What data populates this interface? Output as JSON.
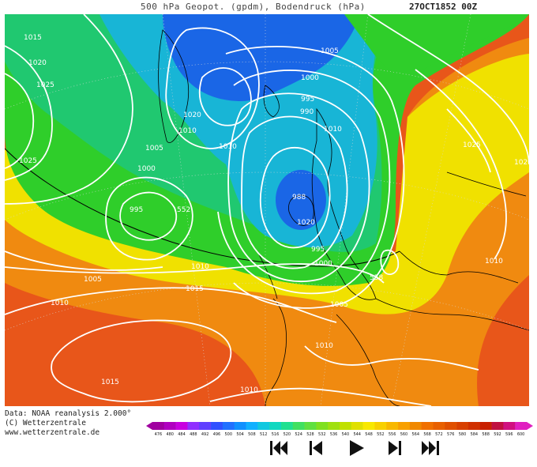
{
  "header": {
    "title": "500 hPa Geopot. (gpdm), Bodendruck (hPa)",
    "datestamp": "27OCT1852 00Z"
  },
  "map": {
    "isobar_labels": [
      "1015",
      "1020",
      "1025",
      "1025",
      "1020",
      "1010",
      "1005",
      "1000",
      "995",
      "990",
      "1010",
      "1005",
      "1000",
      "995",
      "1010",
      "1020",
      "1025",
      "1020",
      "1010",
      "1005",
      "1010",
      "1015",
      "1010",
      "1015",
      "1005",
      "1010",
      "1010",
      "988",
      "995",
      "1000",
      "552",
      "558"
    ],
    "colors": {
      "green": "#2fce2a",
      "yellow": "#f0e100",
      "orange": "#f08a10",
      "red_orange": "#e8561a",
      "blue": "#1a66e6",
      "cyan": "#18b5d6",
      "isobar": "#ffffff",
      "coast": "#000000"
    }
  },
  "credits": {
    "line1": "Data: NOAA reanalysis 2.000°",
    "line2": "(C) Wetterzentrale",
    "line3": "www.wetterzentrale.de"
  },
  "colorbar": {
    "ticks": [
      "476",
      "480",
      "484",
      "488",
      "492",
      "496",
      "500",
      "504",
      "508",
      "512",
      "516",
      "520",
      "524",
      "528",
      "532",
      "536",
      "540",
      "544",
      "548",
      "552",
      "556",
      "560",
      "564",
      "568",
      "572",
      "576",
      "580",
      "584",
      "588",
      "592",
      "596",
      "600"
    ],
    "colors": [
      "#a000a0",
      "#b000c0",
      "#c800e0",
      "#9030ff",
      "#6040ff",
      "#3050ff",
      "#2070ff",
      "#1090ff",
      "#10b0ff",
      "#10c8e0",
      "#10d8c0",
      "#20e090",
      "#40e060",
      "#60e040",
      "#80e020",
      "#a0e010",
      "#c0e000",
      "#e0e000",
      "#f8e800",
      "#f8d000",
      "#f8b800",
      "#f8a000",
      "#f08800",
      "#f07000",
      "#e86000",
      "#e05000",
      "#d84000",
      "#d03000",
      "#c82000",
      "#c01040",
      "#d01080",
      "#e020c0"
    ]
  },
  "controls": {
    "first": "first-frame",
    "prev": "previous-frame",
    "play": "play",
    "next": "next-frame",
    "last": "last-frame"
  }
}
